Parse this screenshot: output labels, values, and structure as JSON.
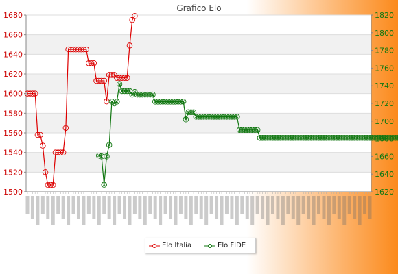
{
  "chart_data": {
    "type": "line",
    "title": "Grafico Elo",
    "ylim_left": [
      1500,
      1680
    ],
    "yticks_left": [
      1500,
      1520,
      1540,
      1560,
      1580,
      1600,
      1620,
      1640,
      1660,
      1680
    ],
    "ylim_right": [
      1620,
      1820
    ],
    "yticks_right": [
      1620,
      1640,
      1660,
      1680,
      1700,
      1720,
      1740,
      1760,
      1780,
      1800,
      1820
    ],
    "n_points": 135,
    "grid": true,
    "legend_position": "bottom",
    "series": [
      {
        "name": "Elo Italia",
        "axis": "left",
        "color": "#dd0000",
        "start": 0,
        "values": [
          1600,
          1600,
          1600,
          1600,
          1558,
          1558,
          1547,
          1520,
          1507,
          1507,
          1507,
          1540,
          1540,
          1540,
          1540,
          1565,
          1645,
          1645,
          1645,
          1645,
          1645,
          1645,
          1645,
          1645,
          1631,
          1631,
          1631,
          1613,
          1613,
          1613,
          1613,
          1592,
          1619,
          1619,
          1619,
          1616,
          1616,
          1616,
          1616,
          1616,
          1649,
          1675,
          1679
        ]
      },
      {
        "name": "Elo FIDE",
        "axis": "right",
        "color": "#117711",
        "start": 28,
        "values": [
          1661,
          1660,
          1628,
          1660,
          1673,
          1722,
          1720,
          1722,
          1742,
          1734,
          1734,
          1734,
          1734,
          1730,
          1733,
          1730,
          1730,
          1730,
          1730,
          1730,
          1730,
          1730,
          1722,
          1722,
          1722,
          1722,
          1722,
          1722,
          1722,
          1722,
          1722,
          1722,
          1722,
          1722,
          1702,
          1710,
          1710,
          1710,
          1705,
          1705,
          1705,
          1705,
          1705,
          1705,
          1705,
          1705,
          1705,
          1705,
          1705,
          1705,
          1705,
          1705,
          1705,
          1705,
          1705,
          1690,
          1690,
          1690,
          1690,
          1690,
          1690,
          1690,
          1690,
          1681,
          1681,
          1681,
          1681,
          1681,
          1681,
          1681,
          1681,
          1681,
          1681,
          1681,
          1681,
          1681,
          1681,
          1681,
          1681,
          1681,
          1681,
          1681,
          1681,
          1681,
          1681,
          1681,
          1681,
          1681,
          1681,
          1681,
          1681,
          1681,
          1681,
          1681,
          1681,
          1681,
          1681,
          1681,
          1681,
          1681,
          1681,
          1681,
          1681,
          1681,
          1681,
          1681,
          1681,
          1681,
          1681,
          1681,
          1681,
          1681,
          1681,
          1681,
          1681,
          1681,
          1681,
          1681,
          1681,
          1681,
          1681,
          1681,
          1681,
          1681,
          1681,
          1681,
          1681,
          1681,
          1681,
          1681,
          1681,
          1681,
          1681,
          1681
        ]
      }
    ]
  }
}
